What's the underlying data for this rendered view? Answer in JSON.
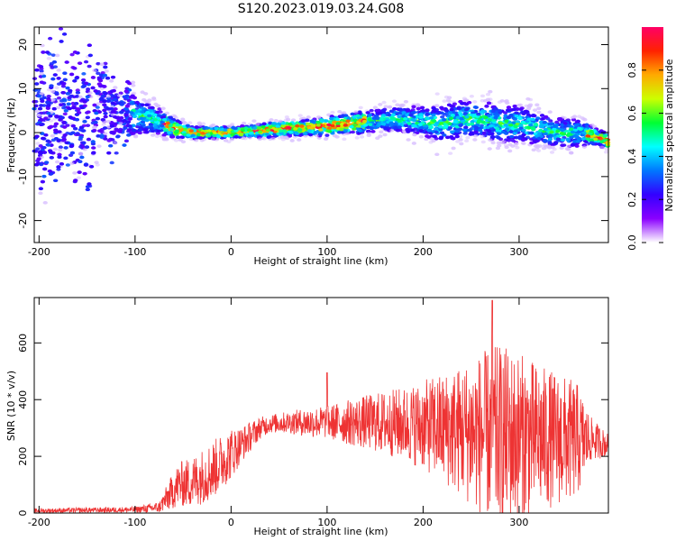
{
  "figure_title": "S120.2023.019.03.24.G08",
  "chart_data": [
    {
      "type": "heatmap",
      "xlabel": "Height of straight line (km)",
      "ylabel": "Frequency (Hz)",
      "xlim": [
        -205,
        393
      ],
      "ylim": [
        -25,
        24
      ],
      "xticks": [
        "-200",
        "-100",
        "0",
        "100",
        "200",
        "300"
      ],
      "yticks": [
        "-20",
        "-10",
        "0",
        "10",
        "20"
      ],
      "colorbar": {
        "label": "Normalized spectral amplitude",
        "ticks": [
          "0.0",
          "0.2",
          "0.4",
          "0.6",
          "0.8"
        ],
        "range": [
          0,
          1
        ]
      },
      "ridge": {
        "x": [
          -200,
          -150,
          -100,
          -80,
          -70,
          -60,
          -50,
          -40,
          -20,
          0,
          20,
          40,
          60,
          80,
          100,
          120,
          140,
          160,
          180,
          200,
          220,
          240,
          260,
          280,
          300,
          320,
          340,
          360,
          380,
          393
        ],
        "y": [
          3,
          4,
          4,
          3,
          2,
          1,
          0.5,
          0,
          0,
          0,
          0.3,
          0.6,
          1,
          1.2,
          1.5,
          2,
          2.5,
          3,
          3,
          2.5,
          2,
          3,
          3,
          2,
          2,
          1,
          0,
          0,
          -1,
          -2
        ],
        "spread_hz": [
          14,
          14,
          5,
          4,
          3,
          2.5,
          2,
          1.5,
          1.5,
          1.5,
          1.5,
          2,
          2,
          2,
          2.5,
          2.5,
          3,
          3,
          3.5,
          4,
          5,
          5,
          5,
          5,
          5,
          4.5,
          4,
          4,
          2,
          2
        ]
      },
      "colormap": [
        "#ffffff",
        "#8a00ff",
        "#3300ff",
        "#0077ff",
        "#00ffff",
        "#00ff33",
        "#ccff00",
        "#ffaa00",
        "#ff2200",
        "#ff0066"
      ]
    },
    {
      "type": "line",
      "xlabel": "Height of straight line (km)",
      "ylabel": "SNR (10 * v/v)",
      "xlim": [
        -205,
        393
      ],
      "ylim": [
        0,
        760
      ],
      "xticks": [
        "-200",
        "-100",
        "0",
        "100",
        "200",
        "300"
      ],
      "yticks": [
        "0",
        "200",
        "400",
        "600"
      ],
      "color": "#ee3333",
      "envelope": {
        "x": [
          -205,
          -100,
          -75,
          -65,
          -55,
          -40,
          -20,
          0,
          10,
          20,
          30,
          40,
          60,
          80,
          100,
          120,
          150,
          180,
          200,
          220,
          240,
          260,
          280,
          300,
          320,
          340,
          360,
          375,
          393
        ],
        "mean": [
          8,
          12,
          20,
          60,
          100,
          110,
          150,
          210,
          240,
          270,
          300,
          315,
          320,
          320,
          320,
          320,
          320,
          315,
          310,
          300,
          290,
          280,
          270,
          270,
          265,
          260,
          255,
          260,
          240
        ],
        "amp": [
          6,
          8,
          15,
          40,
          60,
          70,
          80,
          70,
          50,
          40,
          30,
          25,
          30,
          40,
          45,
          60,
          80,
          100,
          120,
          150,
          180,
          220,
          250,
          230,
          200,
          180,
          160,
          60,
          30
        ]
      },
      "peaks": [
        {
          "x": 100,
          "y": 495
        },
        {
          "x": 272,
          "y": 750
        }
      ]
    }
  ]
}
